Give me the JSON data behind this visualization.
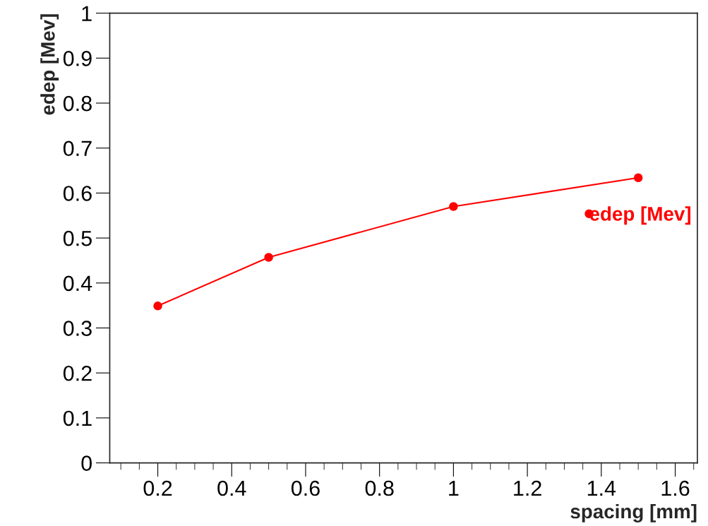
{
  "chart_data": {
    "type": "line",
    "xlabel": "spacing [mm]",
    "ylabel": "edep [Mev]",
    "x": [
      0.2,
      0.5,
      1,
      1.5
    ],
    "series": [
      {
        "name": "edep [Mev]",
        "color": "#ff0000",
        "values": [
          0.349,
          0.457,
          0.57,
          0.634
        ]
      }
    ],
    "xlim": [
      0.07,
      1.66
    ],
    "ylim": [
      0,
      1
    ],
    "xticks": [
      0.2,
      0.4,
      0.6,
      0.8,
      1,
      1.2,
      1.4,
      1.6
    ],
    "yticks": [
      0,
      0.1,
      0.2,
      0.3,
      0.4,
      0.5,
      0.6,
      0.7,
      0.8,
      0.9,
      1
    ],
    "marker": "circle",
    "line_style": "solid",
    "grid": false,
    "legend": "right"
  }
}
